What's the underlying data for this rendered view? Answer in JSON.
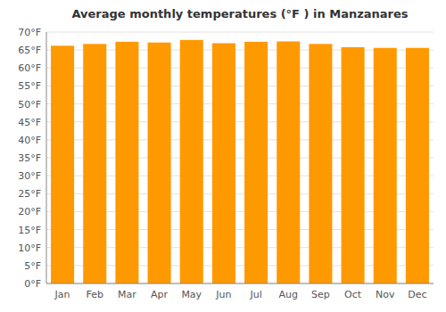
{
  "chart_data": {
    "type": "bar",
    "title": "Average monthly temperatures (°F ) in Manzanares",
    "categories": [
      "Jan",
      "Feb",
      "Mar",
      "Apr",
      "May",
      "Jun",
      "Jul",
      "Aug",
      "Sep",
      "Oct",
      "Nov",
      "Dec"
    ],
    "values": [
      66.2,
      66.7,
      67.3,
      67.1,
      67.8,
      66.9,
      67.3,
      67.4,
      66.7,
      65.8,
      65.6,
      65.6
    ],
    "color": "#FF9900",
    "ylim": [
      0,
      70
    ],
    "yticks": [
      {
        "value": 0,
        "label": "0°F"
      },
      {
        "value": 5,
        "label": "5°F"
      },
      {
        "value": 10,
        "label": "10°F"
      },
      {
        "value": 15,
        "label": "15°F"
      },
      {
        "value": 20,
        "label": "20°F"
      },
      {
        "value": 25,
        "label": "25°F"
      },
      {
        "value": 30,
        "label": "30°F"
      },
      {
        "value": 35,
        "label": "35°F"
      },
      {
        "value": 40,
        "label": "40°F"
      },
      {
        "value": 45,
        "label": "45°F"
      },
      {
        "value": 50,
        "label": "50°F"
      },
      {
        "value": 55,
        "label": "55°F"
      },
      {
        "value": 60,
        "label": "60°F"
      },
      {
        "value": 65,
        "label": "65°F"
      },
      {
        "value": 70,
        "label": "70°F"
      }
    ],
    "grid": true
  }
}
